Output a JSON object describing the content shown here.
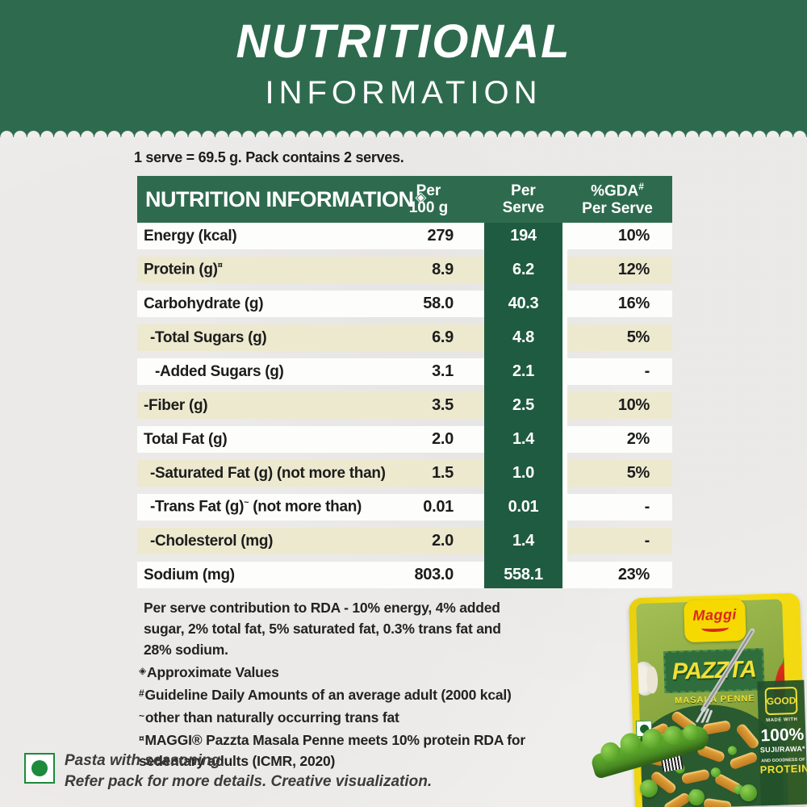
{
  "banner": {
    "title": "NUTRITIONAL",
    "subtitle": "INFORMATION",
    "bg_color": "#2e6b4e"
  },
  "serving_note": "1 serve = 69.5 g. Pack contains 2 serves.",
  "table": {
    "title": "NUTRITION INFORMATION",
    "title_symbol": "◈",
    "columns": {
      "per100_l1": "Per",
      "per100_l2": "100 g",
      "serve_l1": "Per",
      "serve_l2": "Serve",
      "gda_l1": "%GDA",
      "gda_sup": "#",
      "gda_l2": "Per Serve"
    },
    "rows": [
      {
        "label": "Energy (kcal)",
        "sup": "",
        "label2": "",
        "per100": "279",
        "serve": "194",
        "gda": "10%",
        "shade": "white",
        "indent": 0
      },
      {
        "label": "Protein (g)",
        "sup": "¤",
        "label2": "",
        "per100": "8.9",
        "serve": "6.2",
        "gda": "12%",
        "shade": "cream",
        "indent": 0
      },
      {
        "label": "Carbohydrate (g)",
        "sup": "",
        "label2": "",
        "per100": "58.0",
        "serve": "40.3",
        "gda": "16%",
        "shade": "white",
        "indent": 0
      },
      {
        "label": "-Total Sugars (g)",
        "sup": "",
        "label2": "",
        "per100": "6.9",
        "serve": "4.8",
        "gda": "5%",
        "shade": "cream",
        "indent": 1
      },
      {
        "label": "-Added Sugars (g)",
        "sup": "",
        "label2": "",
        "per100": "3.1",
        "serve": "2.1",
        "gda": "-",
        "shade": "white",
        "indent": 2
      },
      {
        "label": "-Fiber (g)",
        "sup": "",
        "label2": "",
        "per100": "3.5",
        "serve": "2.5",
        "gda": "10%",
        "shade": "cream",
        "indent": 0
      },
      {
        "label": "Total Fat (g)",
        "sup": "",
        "label2": "",
        "per100": "2.0",
        "serve": "1.4",
        "gda": "2%",
        "shade": "white",
        "indent": 0
      },
      {
        "label": "-Saturated Fat (g) (not more than)",
        "sup": "",
        "label2": "",
        "per100": "1.5",
        "serve": "1.0",
        "gda": "5%",
        "shade": "cream",
        "indent": 1
      },
      {
        "label": "-Trans Fat (g)",
        "sup": "~",
        "label2": " (not more than)",
        "per100": "0.01",
        "serve": "0.01",
        "gda": "-",
        "shade": "white",
        "indent": 1
      },
      {
        "label": "-Cholesterol (mg)",
        "sup": "",
        "label2": "",
        "per100": "2.0",
        "serve": "1.4",
        "gda": "-",
        "shade": "cream",
        "indent": 1
      },
      {
        "label": "Sodium (mg)",
        "sup": "",
        "label2": "",
        "per100": "803.0",
        "serve": "558.1",
        "gda": "23%",
        "shade": "white",
        "indent": 0
      }
    ]
  },
  "footnotes": [
    {
      "sym": "",
      "text": "Per serve contribution to RDA - 10% energy, 4% added sugar, 2% total fat, 5% saturated fat, 0.3% trans fat and 28% sodium."
    },
    {
      "sym": "◈",
      "text": "Approximate Values"
    },
    {
      "sym": "#",
      "text": "Guideline Daily Amounts of an average adult (2000 kcal)"
    },
    {
      "sym": "~",
      "text": "other than naturally occurring trans fat"
    },
    {
      "sym": "¤",
      "text": "MAGGI® Pazzta Masala Penne meets 10% protein RDA for sedentary adults (ICMR, 2020)"
    }
  ],
  "veg_note": {
    "line1": "Pasta with seasoning.",
    "line2": "Refer pack for more details. Creative visualization."
  },
  "pack": {
    "brand": "Maggi",
    "name": "PAZZTA",
    "variant": "MASALA PENNE",
    "badge_good": "GOOD",
    "made_with": "MADE WITH",
    "pct": "100%",
    "suji": "SUJI/RAWA*",
    "goodness": "AND GOODNESS OF",
    "protein": "PROTEIN*"
  },
  "colors": {
    "banner_green": "#2e6b4e",
    "column_green": "#1f5b40",
    "cream_row": "#ece9cf",
    "paper": "#efeeec",
    "pack_yellow": "#f2d711",
    "maggi_red": "#d8291c",
    "pazzta_yellow": "#f2e134",
    "veg_green": "#1e8a3c"
  }
}
